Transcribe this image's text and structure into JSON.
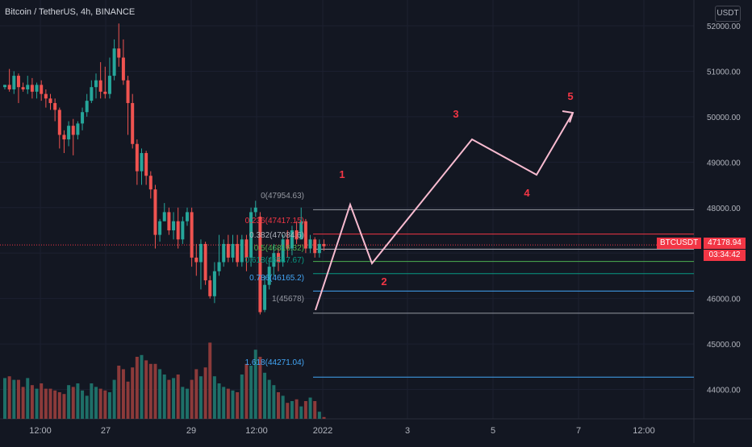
{
  "header": {
    "title": "Bitcoin / TetherUS, 4h, BINANCE",
    "currency_button": "USDT"
  },
  "price_axis": {
    "ticks": [
      "52000.00",
      "51000.00",
      "50000.00",
      "49000.00",
      "48000.00",
      "47000.00",
      "46000.00",
      "45000.00",
      "44000.00"
    ]
  },
  "time_axis": {
    "labels": [
      "12:00",
      "27",
      "29",
      "12:00",
      "2022",
      "3",
      "5",
      "7",
      "12:00"
    ]
  },
  "last_price": {
    "symbol": "BTCUSDT",
    "price": "47178.94",
    "countdown": "03:34:42"
  },
  "fib_labels": [
    {
      "text": "0(47954.63)",
      "color": "#9598a1"
    },
    {
      "text": "0.236(47417.15)",
      "color": "#f23645"
    },
    {
      "text": "0.382(47084.6)",
      "color": "#b2b5be"
    },
    {
      "text": "0.5(46816.32)",
      "color": "#4caf50"
    },
    {
      "text": "0.618(46547.67)",
      "color": "#089981"
    },
    {
      "text": "0.786(46165.2)",
      "color": "#42a5f5"
    },
    {
      "text": "1(45678)",
      "color": "#9598a1"
    },
    {
      "text": "1.618(44271.04)",
      "color": "#42a5f5"
    }
  ],
  "wave_labels": [
    "1",
    "2",
    "3",
    "4",
    "5"
  ],
  "colors": {
    "up": "#26a69a",
    "down": "#ef5350",
    "background": "#131722",
    "wave_line": "#f8bbd0",
    "wave_label": "#f23645"
  },
  "chart_data": {
    "type": "candlestick",
    "symbol": "BTCUSDT",
    "interval": "4h",
    "exchange": "BINANCE",
    "ylim": [
      43600,
      52400
    ],
    "fib_retracement": {
      "levels": [
        {
          "ratio": 0,
          "price": 47954.63
        },
        {
          "ratio": 0.236,
          "price": 47417.15
        },
        {
          "ratio": 0.382,
          "price": 47084.6
        },
        {
          "ratio": 0.5,
          "price": 46816.32
        },
        {
          "ratio": 0.618,
          "price": 46547.67
        },
        {
          "ratio": 0.786,
          "price": 46165.2
        },
        {
          "ratio": 1,
          "price": 45678
        },
        {
          "ratio": 1.618,
          "price": 44271.04
        }
      ]
    },
    "last_price": 47178.94,
    "candles": [
      [
        50650,
        50700,
        50700,
        50600
      ],
      [
        50700,
        50600,
        51050,
        50550
      ],
      [
        50600,
        50900,
        51000,
        50500
      ],
      [
        50900,
        50650,
        50950,
        50300
      ],
      [
        50650,
        50600,
        50750,
        50550
      ],
      [
        50600,
        50700,
        50900,
        50500
      ],
      [
        50700,
        50550,
        50850,
        50400
      ],
      [
        50550,
        50700,
        50750,
        50400
      ],
      [
        50700,
        50500,
        50800,
        50350
      ],
      [
        50500,
        50400,
        50600,
        50200
      ],
      [
        50400,
        50300,
        50500,
        50150
      ],
      [
        50300,
        50150,
        50400,
        49900
      ],
      [
        50150,
        49600,
        50200,
        49300
      ],
      [
        49600,
        49500,
        49700,
        49200
      ],
      [
        49500,
        49800,
        49900,
        49350
      ],
      [
        49800,
        49600,
        49950,
        49150
      ],
      [
        49600,
        49850,
        49900,
        49500
      ],
      [
        49850,
        50100,
        50200,
        49700
      ],
      [
        50100,
        50350,
        50500,
        50000
      ],
      [
        50350,
        50650,
        50800,
        50300
      ],
      [
        50650,
        50800,
        50950,
        50400
      ],
      [
        50800,
        50550,
        51200,
        50400
      ],
      [
        50550,
        50500,
        51100,
        50400
      ],
      [
        50500,
        50900,
        51300,
        50400
      ],
      [
        50900,
        51500,
        51700,
        50800
      ],
      [
        51500,
        51300,
        52050,
        51100
      ],
      [
        51300,
        50800,
        51700,
        50700
      ],
      [
        50800,
        50300,
        50900,
        49600
      ],
      [
        50300,
        49400,
        50500,
        49300
      ],
      [
        49400,
        48800,
        49500,
        48500
      ],
      [
        48800,
        49200,
        49300,
        48500
      ],
      [
        49200,
        48700,
        49250,
        48500
      ],
      [
        48700,
        48400,
        48800,
        48200
      ],
      [
        48400,
        47400,
        48500,
        47100
      ],
      [
        47400,
        47700,
        47750,
        47250
      ],
      [
        47700,
        47900,
        48100,
        47700
      ],
      [
        47900,
        47500,
        48000,
        47400
      ],
      [
        47500,
        47700,
        47900,
        47300
      ],
      [
        47700,
        47300,
        48000,
        47100
      ],
      [
        47300,
        47700,
        47800,
        47200
      ],
      [
        47700,
        47900,
        48000,
        47600
      ],
      [
        47900,
        46900,
        48000,
        46700
      ],
      [
        46900,
        46800,
        47200,
        46500
      ],
      [
        46800,
        47200,
        47300,
        46200
      ],
      [
        47200,
        46400,
        47250,
        46300
      ],
      [
        46400,
        46050,
        46500,
        46000
      ],
      [
        46050,
        46600,
        46800,
        45900
      ],
      [
        46600,
        46800,
        47400,
        46500
      ],
      [
        46800,
        47200,
        47300,
        46700
      ],
      [
        47200,
        46900,
        47400,
        46800
      ],
      [
        46900,
        47200,
        47400,
        46800
      ],
      [
        47200,
        46800,
        47400,
        46700
      ],
      [
        46800,
        47300,
        47400,
        46700
      ],
      [
        47300,
        46900,
        47400,
        46600
      ],
      [
        46900,
        47900,
        48000,
        46700
      ],
      [
        47900,
        48000,
        48150,
        47800
      ],
      [
        47800,
        45700,
        47900,
        45650
      ],
      [
        45750,
        46300,
        46500,
        45700
      ],
      [
        46300,
        46700,
        46900,
        46200
      ],
      [
        46700,
        47000,
        47200,
        46500
      ],
      [
        47000,
        46800,
        47100,
        46600
      ],
      [
        46800,
        47300,
        47400,
        46700
      ],
      [
        47300,
        47100,
        47500,
        46900
      ],
      [
        47100,
        47500,
        47600,
        46950
      ],
      [
        47500,
        47300,
        47700,
        47200
      ],
      [
        47300,
        47700,
        48000,
        47300
      ],
      [
        47700,
        47100,
        47750,
        47000
      ],
      [
        47100,
        47300,
        47400,
        47000
      ],
      [
        47300,
        47000,
        47350,
        46900
      ],
      [
        47000,
        47200,
        47300,
        46900
      ],
      [
        47200,
        47150,
        47300,
        47050
      ]
    ],
    "volume": [
      46,
      48,
      44,
      44,
      36,
      46,
      38,
      34,
      40,
      34,
      34,
      32,
      30,
      28,
      38,
      36,
      40,
      32,
      26,
      40,
      36,
      34,
      32,
      30,
      44,
      60,
      56,
      42,
      58,
      70,
      72,
      66,
      62,
      62,
      56,
      50,
      44,
      46,
      50,
      36,
      34,
      44,
      56,
      48,
      58,
      86,
      48,
      40,
      36,
      34,
      32,
      30,
      50,
      62,
      60,
      78,
      70,
      52,
      44,
      38,
      30,
      26,
      18,
      20,
      22,
      14,
      20,
      24,
      20,
      8,
      2
    ],
    "wave_path": [
      [
        "1",
        "low",
        45690,
        395,
        "2022-01-01"
      ],
      [
        "1",
        "peak",
        48050,
        436,
        ""
      ],
      [
        "2",
        "low",
        46800,
        462,
        ""
      ],
      [
        "3",
        "peak",
        49500,
        585,
        ""
      ],
      [
        "4",
        "low",
        48700,
        665,
        ""
      ],
      [
        "5",
        "peak",
        50000,
        712,
        ""
      ]
    ]
  }
}
